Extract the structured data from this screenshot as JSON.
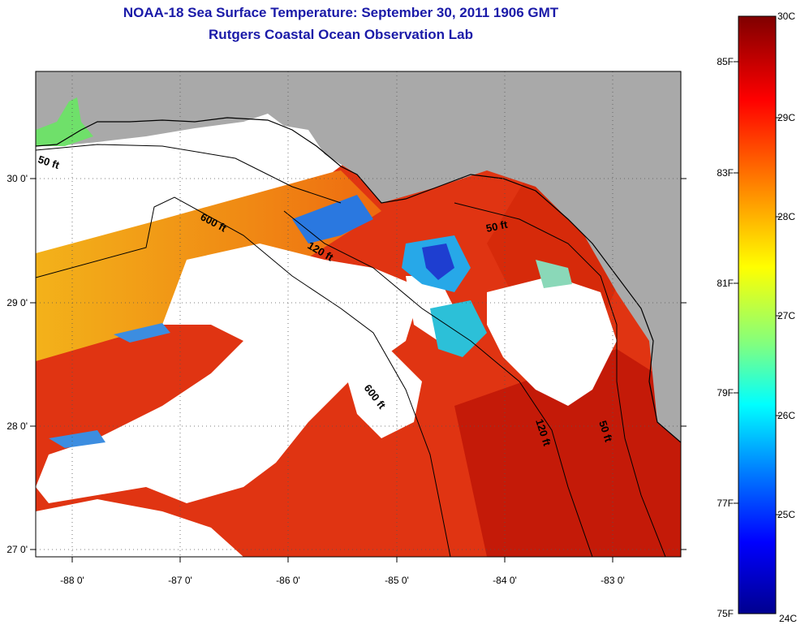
{
  "header": {
    "title": "NOAA-18 Sea Surface Temperature:  September 30, 2011 1906 GMT",
    "subtitle": "Rutgers Coastal Ocean Observation Lab"
  },
  "map": {
    "lat_labels": [
      "30 0'",
      "29 0'",
      "28 0'",
      "27 0'"
    ],
    "lon_labels": [
      "-88 0'",
      "-87 0'",
      "-86 0'",
      "-85 0'",
      "-84 0'",
      "-83 0'"
    ],
    "contour_labels": [
      "50 ft",
      "600 ft",
      "120 ft",
      "50 ft",
      "600 ft",
      "120 ft",
      "50 ft"
    ],
    "colors": {
      "land": "#a9a9a9",
      "cloud": "#ffffff",
      "warm": "#e8280c",
      "cool": "#1f6fe0"
    }
  },
  "colorbar": {
    "f_labels": [
      "85F",
      "83F",
      "81F",
      "79F",
      "77F",
      "75F"
    ],
    "c_labels": [
      "30C",
      "29C",
      "28C",
      "27C",
      "26C",
      "25C",
      "24C"
    ],
    "stops": [
      "#7f0000",
      "#ff0000",
      "#ff8000",
      "#ffff00",
      "#80ff80",
      "#00ffff",
      "#0080ff",
      "#0000ff",
      "#00008f"
    ]
  }
}
